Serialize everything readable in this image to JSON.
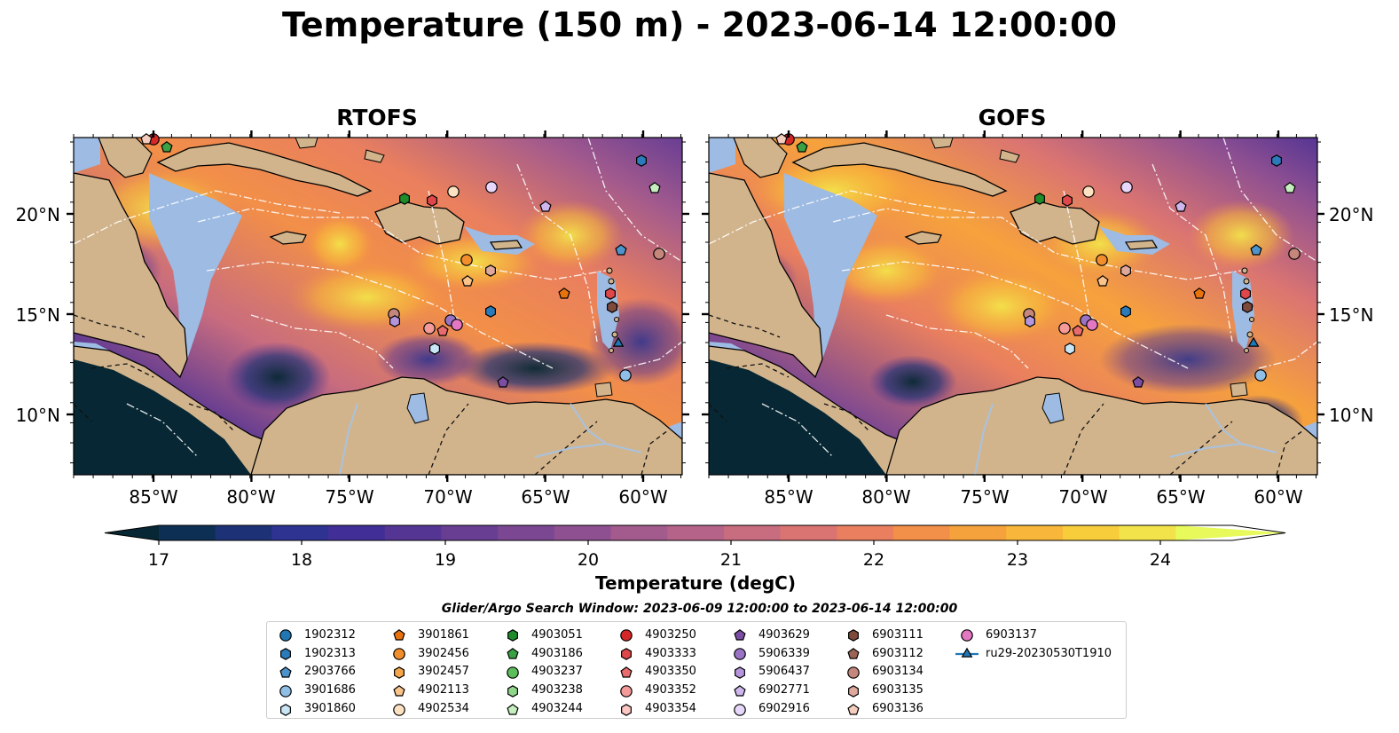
{
  "figure": {
    "title": "Temperature (150 m) - 2023-06-14 12:00:00",
    "search_window": "Glider/Argo Search Window: 2023-06-09 12:00:00 to 2023-06-14 12:00:00"
  },
  "panels": [
    {
      "title": "RTOFS"
    },
    {
      "title": "GOFS"
    }
  ],
  "axes": {
    "x_ticks": [
      "85°W",
      "80°W",
      "75°W",
      "70°W",
      "65°W",
      "60°W"
    ],
    "y_ticks": [
      "20°N",
      "15°N",
      "10°N"
    ]
  },
  "colorbar": {
    "label": "Temperature (degC)",
    "ticks": [
      "17",
      "18",
      "19",
      "20",
      "21",
      "22",
      "23",
      "24"
    ],
    "min": 17,
    "max": 24.5,
    "step": 0.5,
    "colors": [
      "#062733",
      "#0e2f54",
      "#1d3276",
      "#2e3290",
      "#412f97",
      "#553594",
      "#683e93",
      "#7b4792",
      "#8f5091",
      "#a35a8d",
      "#b56388",
      "#c86c7f",
      "#da7472",
      "#e97f5f",
      "#f28f48",
      "#f6a23c",
      "#f8b73a",
      "#f8cd3c",
      "#f3e34a",
      "#e8fa5b"
    ]
  },
  "legend": {
    "items": [
      {
        "label": "1902312",
        "marker": "circle",
        "color": "#1f77b4"
      },
      {
        "label": "1902313",
        "marker": "hexagon",
        "color": "#2b7bba"
      },
      {
        "label": "2903766",
        "marker": "pentagon",
        "color": "#4d94cc"
      },
      {
        "label": "3901686",
        "marker": "circle",
        "color": "#8fbfe6"
      },
      {
        "label": "3901860",
        "marker": "hexagon",
        "color": "#c9e6f7"
      },
      {
        "label": "3901861",
        "marker": "pentagon",
        "color": "#e8720c"
      },
      {
        "label": "3902456",
        "marker": "circle",
        "color": "#f28e2b"
      },
      {
        "label": "3902457",
        "marker": "hexagon",
        "color": "#f5a54a"
      },
      {
        "label": "4902113",
        "marker": "pentagon",
        "color": "#f9c38a"
      },
      {
        "label": "4902534",
        "marker": "circle",
        "color": "#fde2c2"
      },
      {
        "label": "4903051",
        "marker": "hexagon",
        "color": "#1e8c2a"
      },
      {
        "label": "4903186",
        "marker": "pentagon",
        "color": "#3aa144"
      },
      {
        "label": "4903237",
        "marker": "circle",
        "color": "#5cbf5c"
      },
      {
        "label": "4903238",
        "marker": "hexagon",
        "color": "#8fd68a"
      },
      {
        "label": "4903244",
        "marker": "pentagon",
        "color": "#c6efc0"
      },
      {
        "label": "4903250",
        "marker": "circle",
        "color": "#d62728"
      },
      {
        "label": "4903333",
        "marker": "hexagon",
        "color": "#e0474a"
      },
      {
        "label": "4903350",
        "marker": "pentagon",
        "color": "#ea6b6d"
      },
      {
        "label": "4903352",
        "marker": "circle",
        "color": "#f49a98"
      },
      {
        "label": "4903354",
        "marker": "hexagon",
        "color": "#fcc6c2"
      },
      {
        "label": "4903629",
        "marker": "pentagon",
        "color": "#7b4ea3"
      },
      {
        "label": "5906339",
        "marker": "circle",
        "color": "#9a73c4"
      },
      {
        "label": "5906437",
        "marker": "hexagon",
        "color": "#b596dc"
      },
      {
        "label": "6902771",
        "marker": "pentagon",
        "color": "#cdb7ee"
      },
      {
        "label": "6902916",
        "marker": "circle",
        "color": "#e6d7fb"
      },
      {
        "label": "6903111",
        "marker": "hexagon",
        "color": "#7d4a3c"
      },
      {
        "label": "6903112",
        "marker": "pentagon",
        "color": "#9c6456"
      },
      {
        "label": "6903134",
        "marker": "circle",
        "color": "#c5867b"
      },
      {
        "label": "6903135",
        "marker": "hexagon",
        "color": "#dea89c"
      },
      {
        "label": "6903136",
        "marker": "pentagon",
        "color": "#f4cdbf"
      },
      {
        "label": "6903137",
        "marker": "circle",
        "color": "#e377c2"
      },
      {
        "label": "ru29-20230530T1910",
        "marker": "triangle-line",
        "color": "#1f77b4"
      }
    ]
  },
  "map_colors": {
    "land": "#d2b48c",
    "shelf": "#9dbbe3",
    "river": "#a8c2e0",
    "coast": "#000000",
    "borders": "#111111",
    "eez": "#ffffff"
  }
}
